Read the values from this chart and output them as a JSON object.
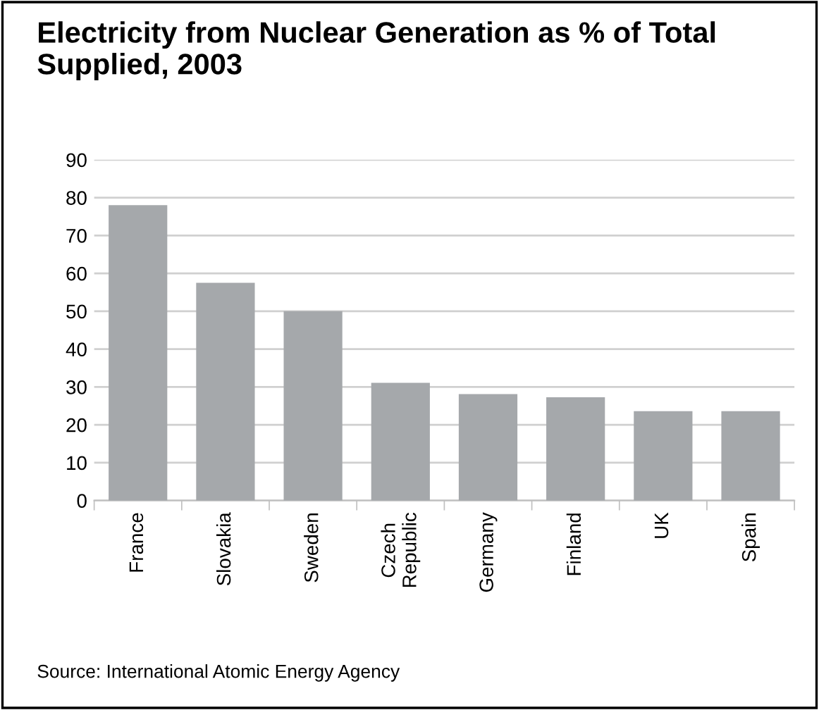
{
  "chart_data": {
    "type": "bar",
    "title": "Electricity from Nuclear Generation as % of Total Supplied, 2003",
    "categories": [
      "France",
      "Slovakia",
      "Sweden",
      "Czech\nRepublic",
      "Germany",
      "Finland",
      "UK",
      "Spain"
    ],
    "values": [
      78,
      57.5,
      50,
      31.1,
      28.1,
      27.3,
      23.6,
      23.6
    ],
    "color": "#a5a8ab",
    "ylim": [
      0,
      90
    ],
    "yticks": [
      0,
      10,
      20,
      30,
      40,
      50,
      60,
      70,
      80,
      90
    ],
    "grid": "y",
    "legend": false,
    "annotations": [
      "Source: International Atomic Energy Agency"
    ]
  }
}
